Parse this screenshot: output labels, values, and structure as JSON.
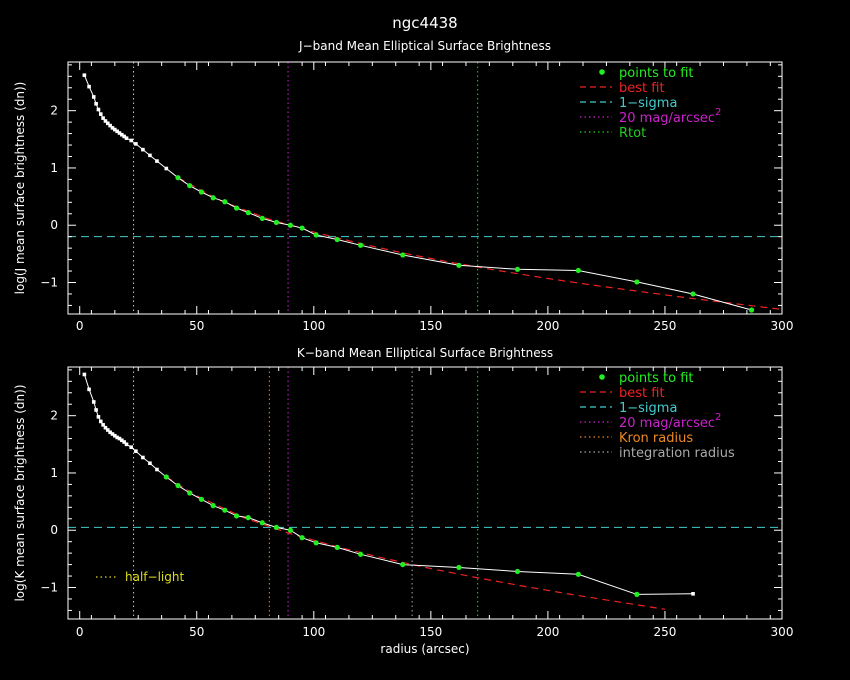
{
  "figure": {
    "title": "ngc4438"
  },
  "colors": {
    "background": "#000000",
    "axes": "#ffffff",
    "points": "#22ee22",
    "best_fit": "#ee2222",
    "sigma": "#44cccc",
    "mag20": "#cc22cc",
    "rtot": "#22cc22",
    "half_light": "#dddd22",
    "kron": "#ee8822",
    "integration": "#aaaaaa"
  },
  "chart_data": [
    {
      "type": "line",
      "title": "J−band Mean Elliptical Surface Brightness",
      "xlabel": "",
      "ylabel": "log(J mean surface brightness (dn))",
      "xlim": [
        -5,
        300
      ],
      "ylim": [
        -1.55,
        2.85
      ],
      "xticks": [
        0,
        50,
        100,
        150,
        200,
        250,
        300
      ],
      "yticks": [
        -1,
        0,
        1,
        2
      ],
      "ytick_labels": [
        "−1",
        "0",
        "1",
        "2"
      ],
      "legend": {
        "placement": "top-right",
        "entries": [
          {
            "label": "points to fit",
            "style": "point",
            "color": "#22ee22"
          },
          {
            "label": "best fit",
            "style": "dashed",
            "color": "#ee2222"
          },
          {
            "label": "1−sigma",
            "style": "dashed",
            "color": "#44cccc"
          },
          {
            "label": "20 mag/arcsec",
            "sup": "2",
            "style": "dotted",
            "color": "#cc22cc"
          },
          {
            "label": "Rtot",
            "style": "dotted",
            "color": "#22cc22"
          }
        ]
      },
      "profile": {
        "x": [
          2,
          4,
          6,
          7,
          8,
          9,
          10,
          11,
          12,
          13,
          14,
          15,
          16,
          17,
          18,
          19,
          20,
          22,
          24,
          27,
          30,
          33,
          37,
          42,
          47,
          52,
          57,
          62,
          67,
          72,
          78,
          84,
          90,
          95,
          101,
          110,
          120,
          138,
          162,
          187,
          213,
          238,
          262,
          287
        ],
        "y": [
          2.62,
          2.42,
          2.24,
          2.12,
          2.02,
          1.94,
          1.87,
          1.82,
          1.78,
          1.74,
          1.7,
          1.67,
          1.64,
          1.61,
          1.58,
          1.55,
          1.52,
          1.48,
          1.42,
          1.32,
          1.22,
          1.12,
          0.99,
          0.83,
          0.69,
          0.58,
          0.48,
          0.41,
          0.3,
          0.22,
          0.12,
          0.05,
          0.0,
          -0.05,
          -0.17,
          -0.25,
          -0.35,
          -0.52,
          -0.7,
          -0.77,
          -0.79,
          -0.99,
          -1.2,
          -1.48
        ]
      },
      "fit_points": {
        "x": [
          42,
          47,
          52,
          57,
          62,
          67,
          72,
          78,
          84,
          90,
          95,
          101,
          110,
          120,
          138,
          162,
          187,
          213,
          238,
          262,
          287
        ],
        "y": [
          0.83,
          0.69,
          0.58,
          0.48,
          0.41,
          0.3,
          0.22,
          0.12,
          0.05,
          0.0,
          -0.05,
          -0.17,
          -0.25,
          -0.35,
          -0.52,
          -0.7,
          -0.77,
          -0.79,
          -0.99,
          -1.2,
          -1.48
        ]
      },
      "best_fit": {
        "x": [
          42,
          60,
          80,
          100,
          120,
          140,
          160,
          180,
          200,
          220,
          240,
          260,
          280,
          300
        ],
        "y": [
          0.83,
          0.43,
          0.12,
          -0.12,
          -0.32,
          -0.5,
          -0.66,
          -0.8,
          -0.93,
          -1.05,
          -1.16,
          -1.27,
          -1.37,
          -1.47
        ]
      },
      "sigma_level": -0.2,
      "vlines": [
        {
          "x": 23,
          "color": "#dddd22"
        },
        {
          "x": 89,
          "color": "#cc22cc"
        },
        {
          "x": 170,
          "color": "#22cc22"
        }
      ],
      "annotation": ""
    },
    {
      "type": "line",
      "title": "K−band Mean Elliptical Surface Brightness",
      "xlabel": "radius (arcsec)",
      "ylabel": "log(K mean surface brightness (dn))",
      "xlim": [
        -5,
        300
      ],
      "ylim": [
        -1.55,
        2.85
      ],
      "xticks": [
        0,
        50,
        100,
        150,
        200,
        250,
        300
      ],
      "yticks": [
        -1,
        0,
        1,
        2
      ],
      "ytick_labels": [
        "−1",
        "0",
        "1",
        "2"
      ],
      "legend": {
        "placement": "top-right",
        "entries": [
          {
            "label": "points to fit",
            "style": "point",
            "color": "#22ee22"
          },
          {
            "label": "best fit",
            "style": "dashed",
            "color": "#ee2222"
          },
          {
            "label": "1−sigma",
            "style": "dashed",
            "color": "#44cccc"
          },
          {
            "label": "20 mag/arcsec",
            "sup": "2",
            "style": "dotted",
            "color": "#cc22cc"
          },
          {
            "label": "Kron radius",
            "style": "dotted",
            "color": "#ee8822"
          },
          {
            "label": "integration radius",
            "style": "dotted",
            "color": "#aaaaaa"
          }
        ]
      },
      "profile": {
        "x": [
          2,
          4,
          6,
          7,
          8,
          9,
          10,
          11,
          12,
          13,
          14,
          15,
          16,
          17,
          18,
          19,
          20,
          22,
          24,
          27,
          30,
          33,
          37,
          42,
          47,
          52,
          57,
          62,
          67,
          72,
          78,
          84,
          90,
          95,
          101,
          110,
          120,
          138,
          162,
          187,
          213,
          238,
          262
        ],
        "y": [
          2.72,
          2.46,
          2.24,
          2.1,
          1.98,
          1.9,
          1.84,
          1.79,
          1.75,
          1.71,
          1.68,
          1.65,
          1.62,
          1.6,
          1.57,
          1.54,
          1.5,
          1.45,
          1.38,
          1.27,
          1.17,
          1.06,
          0.93,
          0.78,
          0.65,
          0.54,
          0.43,
          0.35,
          0.25,
          0.22,
          0.13,
          0.05,
          0.0,
          -0.13,
          -0.22,
          -0.3,
          -0.42,
          -0.6,
          -0.65,
          -0.72,
          -0.77,
          -1.12,
          -1.11
        ]
      },
      "fit_points": {
        "x": [
          37,
          42,
          47,
          52,
          57,
          62,
          67,
          72,
          78,
          84,
          90,
          95,
          101,
          110,
          120,
          138,
          162,
          187,
          213,
          238
        ],
        "y": [
          0.93,
          0.78,
          0.65,
          0.54,
          0.43,
          0.35,
          0.25,
          0.22,
          0.13,
          0.05,
          0.0,
          -0.13,
          -0.22,
          -0.3,
          -0.42,
          -0.6,
          -0.65,
          -0.72,
          -0.77,
          -1.12
        ]
      },
      "best_fit": {
        "x": [
          37,
          50,
          70,
          90,
          110,
          130,
          150,
          170,
          190,
          210,
          230,
          250
        ],
        "y": [
          0.93,
          0.6,
          0.22,
          -0.06,
          -0.29,
          -0.49,
          -0.67,
          -0.83,
          -0.98,
          -1.12,
          -1.25,
          -1.38
        ]
      },
      "sigma_level": 0.05,
      "vlines": [
        {
          "x": 23,
          "color": "#dddd22"
        },
        {
          "x": 81,
          "color": "#ee8822"
        },
        {
          "x": 89,
          "color": "#cc22cc"
        },
        {
          "x": 142,
          "color": "#aaaaaa"
        },
        {
          "x": 170,
          "color": "#22cc22"
        }
      ],
      "annotation": "half−light"
    }
  ]
}
